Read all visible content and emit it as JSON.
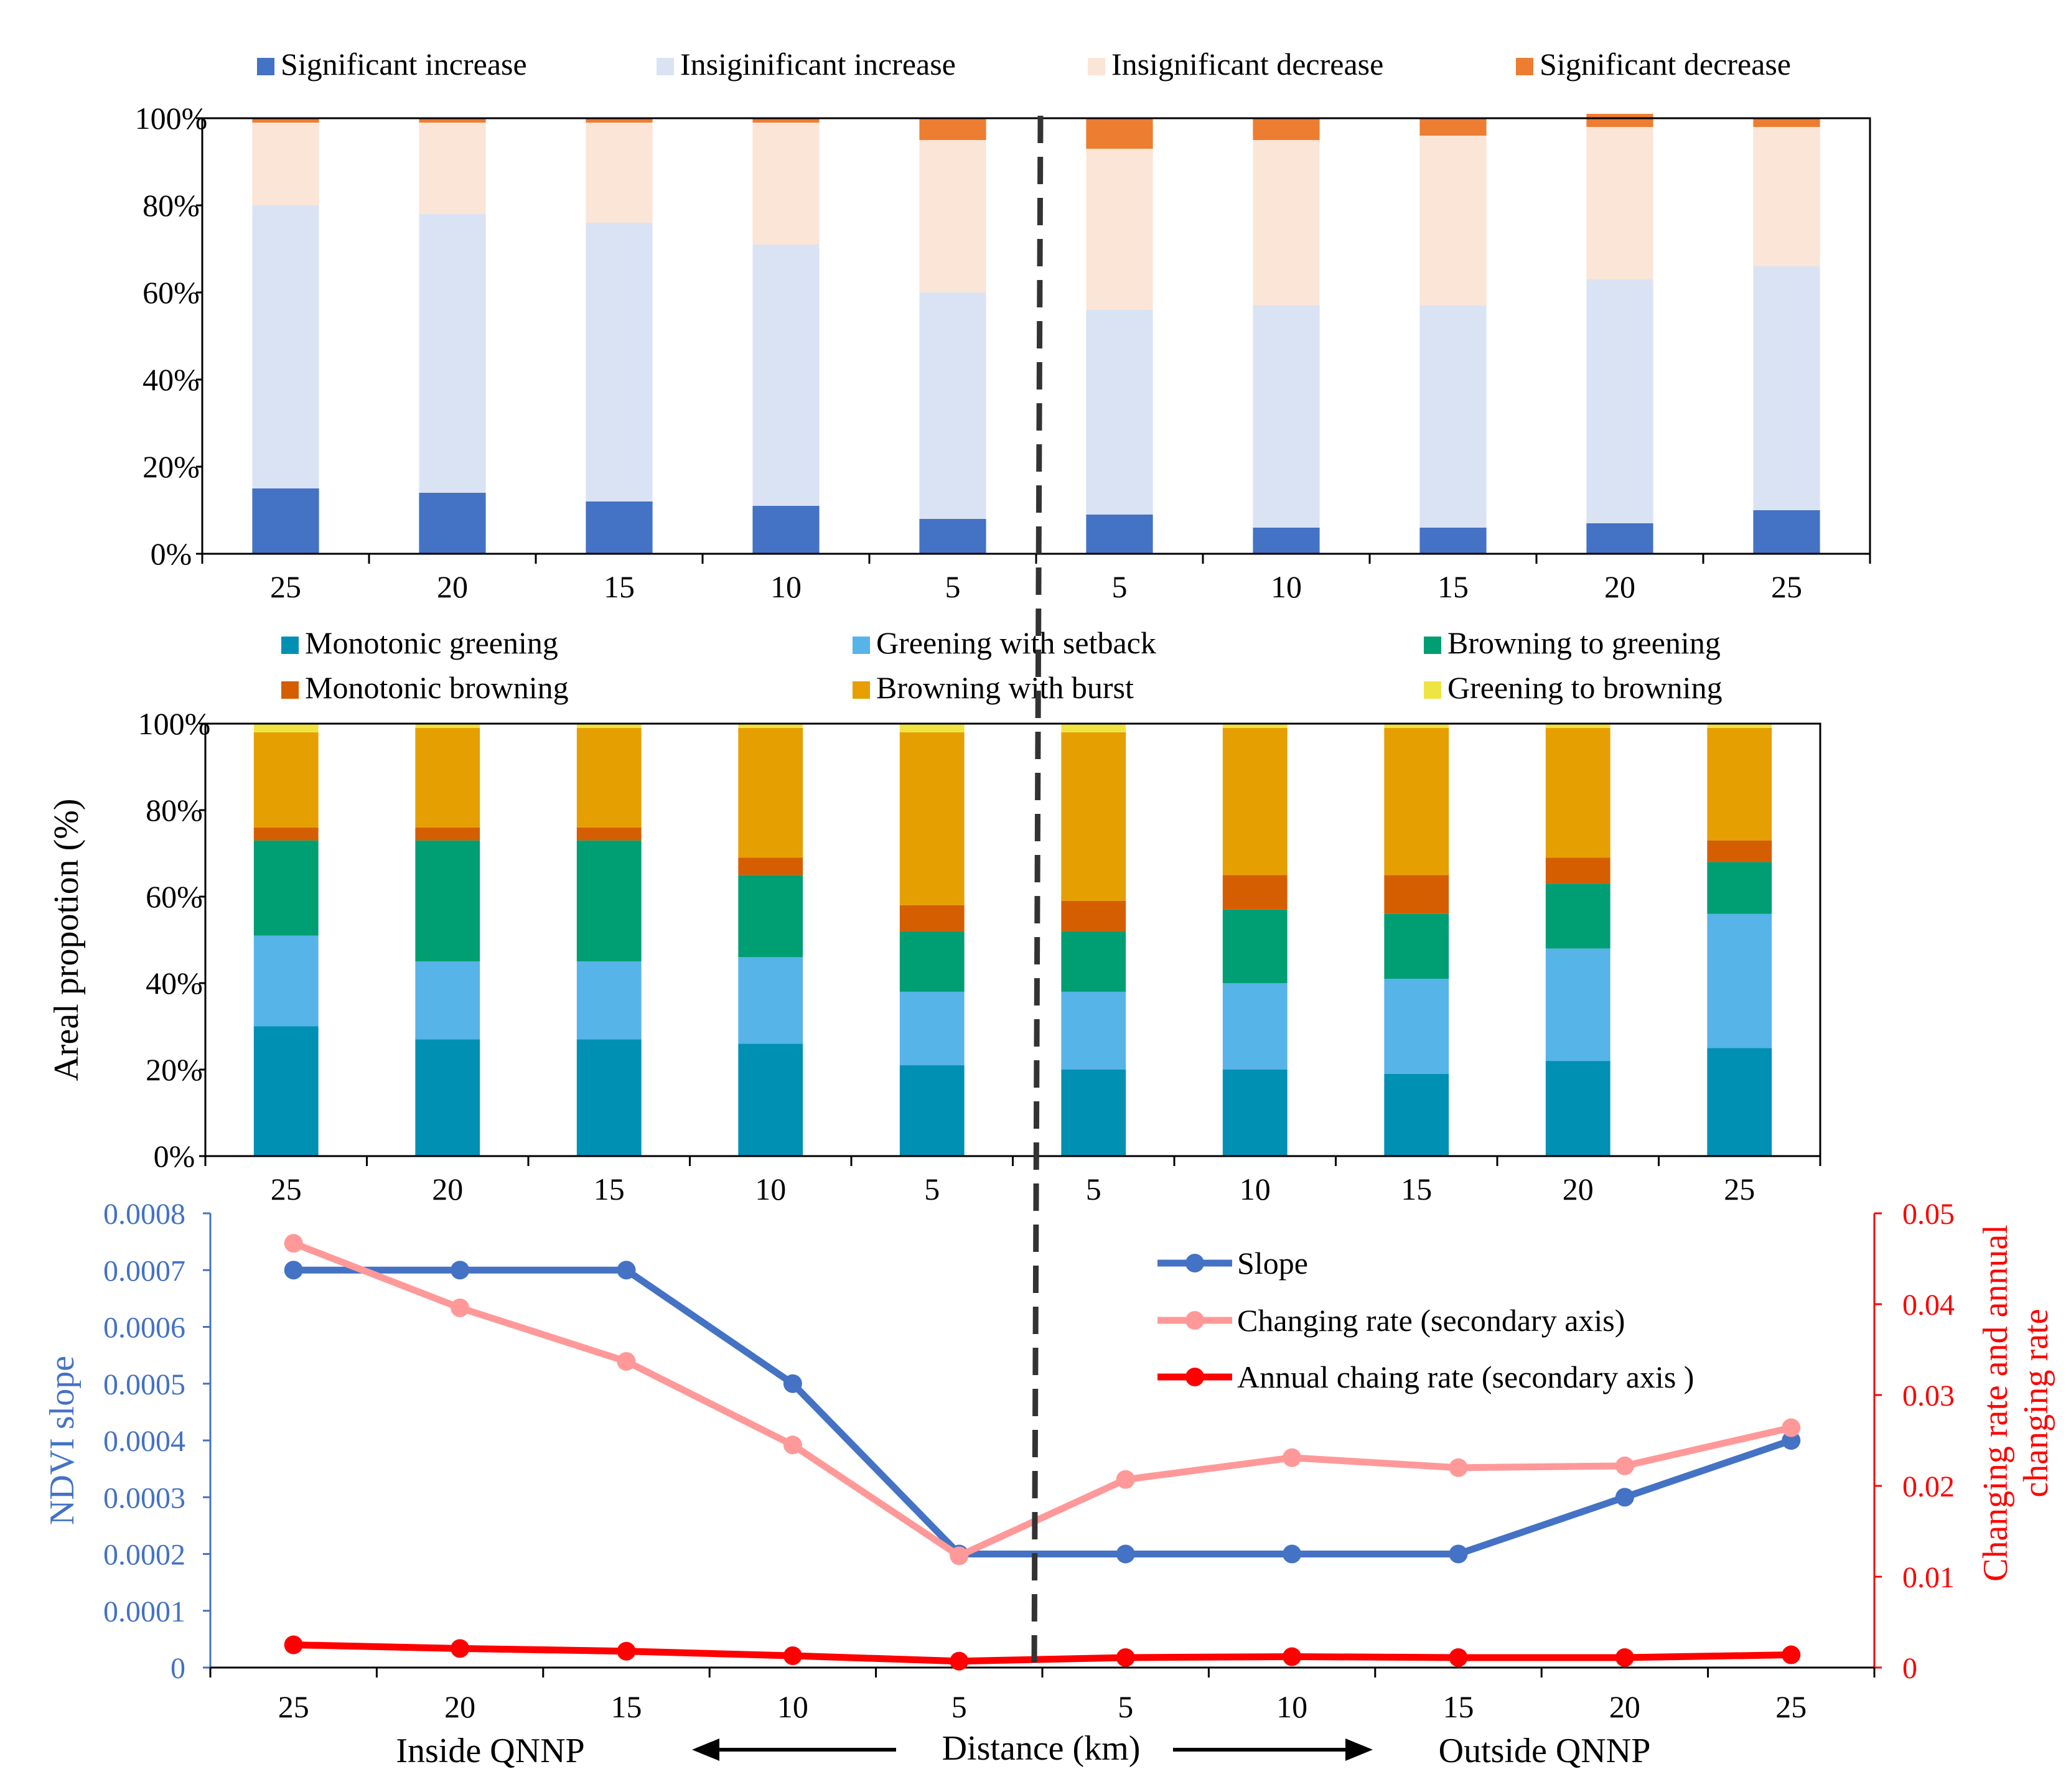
{
  "chart_data": [
    {
      "type": "bar",
      "stacked": true,
      "categories": [
        "25",
        "20",
        "15",
        "10",
        "5",
        "5",
        "10",
        "15",
        "20",
        "25"
      ],
      "ylim": [
        0,
        100
      ],
      "yticks": [
        0,
        20,
        40,
        60,
        80,
        100
      ],
      "ytick_labels": [
        "0%",
        "20%",
        "40%",
        "60%",
        "80%",
        "100%"
      ],
      "legend_position": "top",
      "series": [
        {
          "name": "Significant increase",
          "color": "#4472C4",
          "values": [
            15,
            14,
            12,
            11,
            8,
            9,
            6,
            6,
            7,
            10
          ]
        },
        {
          "name": "Insiginificant increase",
          "color": "#DAE3F3",
          "values": [
            65,
            64,
            64,
            60,
            52,
            47,
            51,
            51,
            56,
            56
          ]
        },
        {
          "name": "Insignificant decrease",
          "color": "#FBE5D6",
          "values": [
            19,
            21,
            23,
            28,
            35,
            37,
            38,
            39,
            35,
            32
          ]
        },
        {
          "name": "Significant decrease",
          "color": "#ED7D31",
          "values": [
            1,
            1,
            1,
            1,
            5,
            7,
            5,
            4,
            3,
            2
          ]
        }
      ]
    },
    {
      "type": "bar",
      "stacked": true,
      "categories": [
        "25",
        "20",
        "15",
        "10",
        "5",
        "5",
        "10",
        "15",
        "20",
        "25"
      ],
      "ylabel": "Areal propotion (%)",
      "ylim": [
        0,
        100
      ],
      "yticks": [
        0,
        20,
        40,
        60,
        80,
        100
      ],
      "ytick_labels": [
        "0%",
        "20%",
        "40%",
        "60%",
        "80%",
        "100%"
      ],
      "legend_position": "top",
      "series": [
        {
          "name": "Monotonic greening",
          "color": "#0090B4",
          "values": [
            30,
            27,
            27,
            26,
            21,
            20,
            20,
            19,
            22,
            25
          ]
        },
        {
          "name": "Greening with setback",
          "color": "#56B4E9",
          "values": [
            21,
            18,
            18,
            20,
            17,
            18,
            20,
            22,
            26,
            31
          ]
        },
        {
          "name": "Browning to greening",
          "color": "#009E73",
          "values": [
            22,
            28,
            28,
            19,
            14,
            14,
            17,
            15,
            15,
            12
          ]
        },
        {
          "name": "Monotonic browning",
          "color": "#D55E00",
          "values": [
            3,
            3,
            3,
            4,
            6,
            7,
            8,
            9,
            6,
            5
          ]
        },
        {
          "name": "Browning with burst",
          "color": "#E69F00",
          "values": [
            22,
            23,
            23,
            30,
            40,
            39,
            34,
            34,
            30,
            26
          ]
        },
        {
          "name": "Greening to browning",
          "color": "#F0E442",
          "values": [
            2,
            1,
            1,
            1,
            2,
            2,
            1,
            1,
            1,
            1
          ]
        }
      ]
    },
    {
      "type": "line",
      "categories": [
        "25",
        "20",
        "15",
        "10",
        "5",
        "5",
        "10",
        "15",
        "20",
        "25"
      ],
      "xlabel": "Distance (km)",
      "x_left_note": "Inside QNNP",
      "x_right_note": "Outside QNNP",
      "ylabel": "NDVI slope",
      "ylim": [
        0,
        0.0008
      ],
      "yticks": [
        "0",
        "0.0001",
        "0.0002",
        "0.0003",
        "0.0004",
        "0.0005",
        "0.0006",
        "0.0007",
        "0.0008"
      ],
      "y2label_line1": "Changing rate and annual",
      "y2label_line2": "changing rate",
      "y2lim": [
        0,
        0.05
      ],
      "y2ticks": [
        "0",
        "0.01",
        "0.02",
        "0.03",
        "0.04",
        "0.05"
      ],
      "legend_position": "top-right",
      "series": [
        {
          "name": "Slope",
          "axis": "left",
          "color": "#4472C4",
          "values": [
            0.0007,
            0.0007,
            0.0007,
            0.0005,
            0.0002,
            0.0002,
            0.0002,
            0.0002,
            0.0003,
            0.0004
          ]
        },
        {
          "name": "Changing rate (secondary axis)",
          "axis": "right",
          "color": "#FF9999",
          "values": [
            0.0467,
            0.0396,
            0.0337,
            0.0245,
            0.0123,
            0.0207,
            0.0231,
            0.022,
            0.0222,
            0.0264
          ]
        },
        {
          "name": "Annual chaing rate (secondary axis )",
          "axis": "right",
          "color": "#FF0000",
          "values": [
            0.0025,
            0.0021,
            0.0018,
            0.0013,
            0.0007,
            0.0011,
            0.0012,
            0.0011,
            0.0011,
            0.0014
          ]
        }
      ]
    }
  ]
}
